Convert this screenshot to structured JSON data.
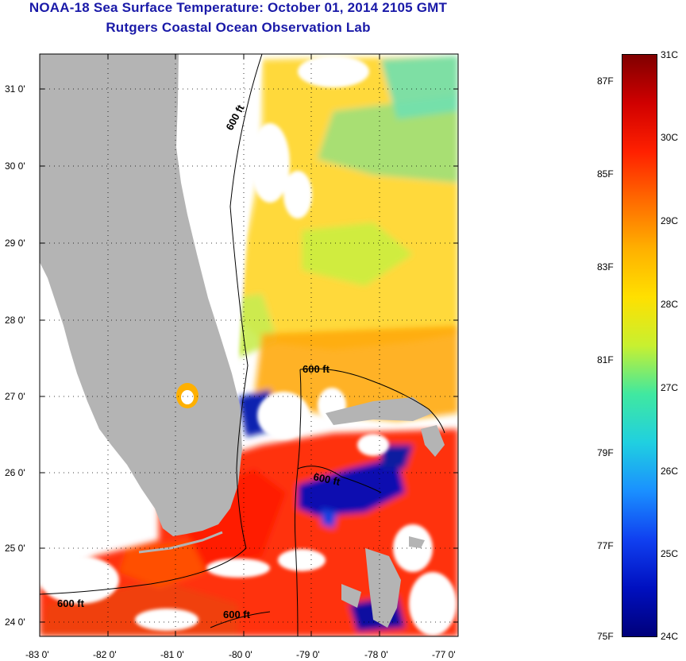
{
  "header": {
    "title": "NOAA-18 Sea Surface Temperature:  October 01, 2014 2105 GMT",
    "subtitle": "Rutgers Coastal Ocean Observation Lab"
  },
  "map": {
    "lat_ticks": [
      "31 0'",
      "30 0'",
      "29 0'",
      "28 0'",
      "27 0'",
      "26 0'",
      "25 0'",
      "24 0'"
    ],
    "lon_ticks": [
      "-83 0'",
      "-82 0'",
      "-81 0'",
      "-80 0'",
      "-79 0'",
      "-78 0'",
      "-77 0'"
    ],
    "contour_labels": [
      "600 ft",
      "600 ft",
      "600 ft",
      "600 ft",
      "600 ft"
    ],
    "land_color": "#b4b4b4",
    "no_data_color": "#ffffff"
  },
  "colorbar": {
    "celsius_labels": [
      "31C",
      "30C",
      "29C",
      "28C",
      "27C",
      "26C",
      "25C",
      "24C"
    ],
    "fahrenheit_labels": [
      "87F",
      "85F",
      "83F",
      "81F",
      "79F",
      "77F",
      "75F"
    ],
    "stops": [
      "#800000",
      "#d00000",
      "#ff2000",
      "#ff6a00",
      "#ffb000",
      "#ffe000",
      "#c8f030",
      "#40e8a0",
      "#20d0e0",
      "#1a90ff",
      "#1040f0",
      "#0010c0",
      "#00007a"
    ]
  },
  "chart_data": {
    "type": "heatmap",
    "title": "NOAA-18 Sea Surface Temperature:  October 01, 2014 2105 GMT",
    "subtitle": "Rutgers Coastal Ocean Observation Lab",
    "x_range": [
      -83,
      -77
    ],
    "y_range": [
      24,
      31.5
    ],
    "colorbar_range_c": [
      24,
      31
    ],
    "colorbar_range_f": [
      75,
      88
    ]
  }
}
